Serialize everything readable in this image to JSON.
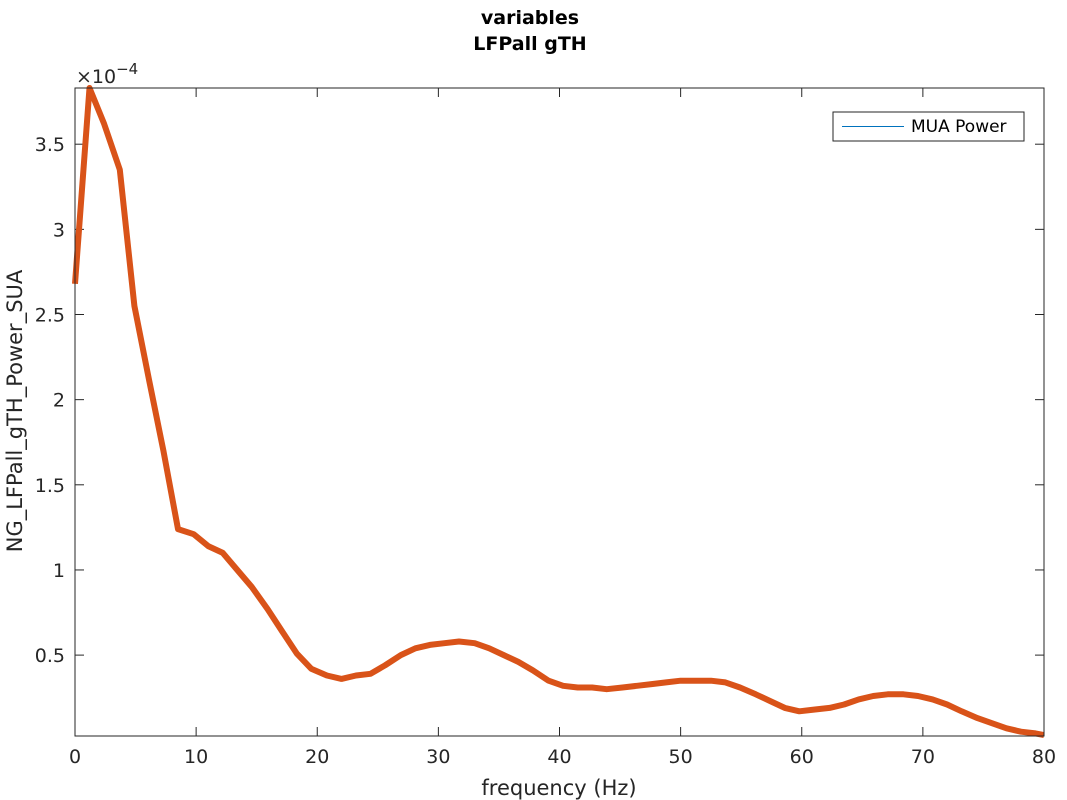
{
  "chart_data": {
    "type": "line",
    "title": [
      "variables",
      "LFPall gTH"
    ],
    "xlabel": "frequency (Hz)",
    "ylabel": "NG_LFPall_gTH_Power_SUA",
    "xlim": [
      0,
      80
    ],
    "ylim": [
      2.5e-06,
      0.000383
    ],
    "xticks": [
      0,
      10,
      20,
      30,
      40,
      50,
      60,
      70,
      80
    ],
    "xtick_labels": [
      "0",
      "10",
      "20",
      "30",
      "40",
      "50",
      "60",
      "70",
      "80"
    ],
    "yticks": [
      5e-05,
      0.0001,
      0.00015,
      0.0002,
      0.00025,
      0.0003,
      0.00035
    ],
    "ytick_labels": [
      "0.5",
      "1",
      "1.5",
      "2",
      "2.5",
      "3",
      "3.5"
    ],
    "y_exponent_base": "×10",
    "y_exponent_power": "−4",
    "grid": false,
    "legend": {
      "position": "top-right",
      "entries": [
        {
          "label": "MUA Power",
          "color": "#0072BD"
        }
      ]
    },
    "series": [
      {
        "color": "#D95319",
        "x": [
          0,
          1.2,
          2.4,
          3.7,
          4.9,
          6.1,
          7.3,
          8.5,
          9.8,
          11.0,
          12.2,
          13.4,
          14.6,
          15.9,
          17.1,
          18.3,
          19.5,
          20.8,
          22.0,
          23.2,
          24.4,
          25.6,
          26.9,
          28.1,
          29.3,
          30.5,
          31.7,
          33.0,
          34.2,
          35.4,
          36.6,
          37.8,
          39.1,
          40.3,
          41.5,
          42.7,
          43.9,
          45.2,
          46.4,
          47.6,
          48.8,
          50.0,
          51.3,
          52.5,
          53.7,
          54.9,
          56.2,
          57.4,
          58.6,
          59.8,
          61.0,
          62.3,
          63.5,
          64.7,
          65.9,
          67.1,
          68.4,
          69.6,
          70.8,
          72.0,
          73.2,
          74.5,
          75.7,
          76.9,
          78.1,
          79.3,
          80.0
        ],
        "values": [
          0.000268,
          0.000383,
          0.000362,
          0.000335,
          0.000255,
          0.000212,
          0.00017,
          0.000124,
          0.000121,
          0.000114,
          0.00011,
          0.0001,
          9e-05,
          7.7e-05,
          6.4e-05,
          5.1e-05,
          4.2e-05,
          3.8e-05,
          3.6e-05,
          3.8e-05,
          3.9e-05,
          4.4e-05,
          5e-05,
          5.4e-05,
          5.6e-05,
          5.7e-05,
          5.8e-05,
          5.7e-05,
          5.4e-05,
          5e-05,
          4.6e-05,
          4.1e-05,
          3.5e-05,
          3.2e-05,
          3.1e-05,
          3.1e-05,
          3e-05,
          3.1e-05,
          3.2e-05,
          3.3e-05,
          3.4e-05,
          3.5e-05,
          3.5e-05,
          3.5e-05,
          3.4e-05,
          3.1e-05,
          2.7e-05,
          2.3e-05,
          1.9e-05,
          1.7e-05,
          1.8e-05,
          1.9e-05,
          2.1e-05,
          2.4e-05,
          2.6e-05,
          2.7e-05,
          2.7e-05,
          2.6e-05,
          2.4e-05,
          2.1e-05,
          1.7e-05,
          1.3e-05,
          1e-05,
          7e-06,
          5e-06,
          4e-06,
          3e-06
        ]
      }
    ]
  }
}
